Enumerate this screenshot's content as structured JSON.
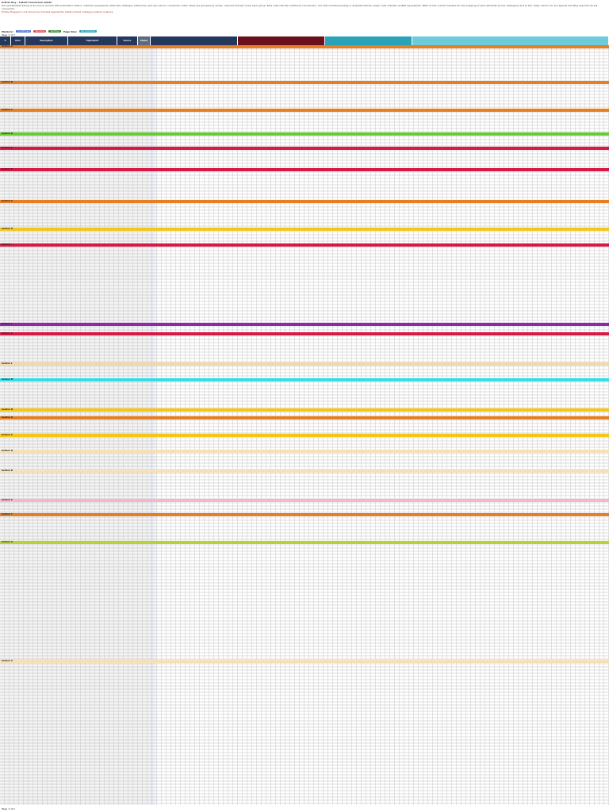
{
  "intro": {
    "title": "Article Key – Latest Conversion Guide",
    "paragraph": "Full spreadsheet listing of all source records with publication status, matched equivalents, alternate catalogue references, and per-column conversion notes. Rows are grouped by series; coloured banners mark each group. Blue cells indicate confirmed conversions, red cells indicate pending or disputed entries, green cells indicate verified equivalents. Refer to the column headers for the mapping of each attribute across catalogues and to the notes column for any special handling required during conversion.",
    "note": "Entries flagged in red should be checked against the latest printed catalogue before ordering."
  },
  "legend": {
    "label": "Markers:",
    "items": [
      "Confirmed",
      "Pending",
      "Verified",
      "All Columns"
    ],
    "page_label": "Page Size:"
  },
  "pages": {
    "top": "Page 1 of 2",
    "bottom": "Page 1 of 2"
  },
  "header": [
    {
      "label": "#",
      "style": "navy"
    },
    {
      "label": "Item",
      "style": "navy"
    },
    {
      "label": "Description",
      "style": "navy"
    },
    {
      "label": "Equivalent",
      "style": "navy"
    },
    {
      "label": "Source",
      "style": "navy"
    },
    {
      "label": "Status",
      "style": "gray"
    },
    {
      "label": "",
      "style": "navy"
    },
    {
      "label": "",
      "style": "maroon"
    },
    {
      "label": "",
      "style": "teal"
    },
    {
      "label": "",
      "style": "lteal"
    }
  ],
  "sections": [
    {
      "color": "#e67e22",
      "label": "Section A"
    },
    {
      "color": "#e67e22",
      "label": "Section B"
    },
    {
      "color": "#e67e22",
      "label": "Section C"
    },
    {
      "color": "#66cc33",
      "label": "Section D"
    },
    {
      "color": "#d61a46",
      "label": "Section E"
    },
    {
      "color": "#d61a46",
      "label": "Section F"
    },
    {
      "color": "#e67e22",
      "label": "Section G"
    },
    {
      "color": "#f5c518",
      "label": "Section H"
    },
    {
      "color": "#d61a46",
      "label": "Section I"
    },
    {
      "color": "#8e2aa8",
      "label": "Section J"
    },
    {
      "color": "#d61a46",
      "label": "Section K"
    },
    {
      "color": "#f0d8a8",
      "label": "Section L"
    },
    {
      "color": "#33dfe6",
      "label": "Section M"
    },
    {
      "color": "#f5c518",
      "label": "Section N"
    },
    {
      "color": "#e67e22",
      "label": "Section O"
    },
    {
      "color": "#f5c518",
      "label": "Section P"
    },
    {
      "color": "#f5e0b8",
      "label": "Section Q"
    },
    {
      "color": "#f5e0b8",
      "label": "Section R"
    },
    {
      "color": "#f5b8c8",
      "label": "Section S"
    },
    {
      "color": "#e67e22",
      "label": "Section T"
    },
    {
      "color": "#b8d13a",
      "label": "Section U"
    },
    {
      "color": "#f5e0b8",
      "label": "Section V"
    }
  ]
}
